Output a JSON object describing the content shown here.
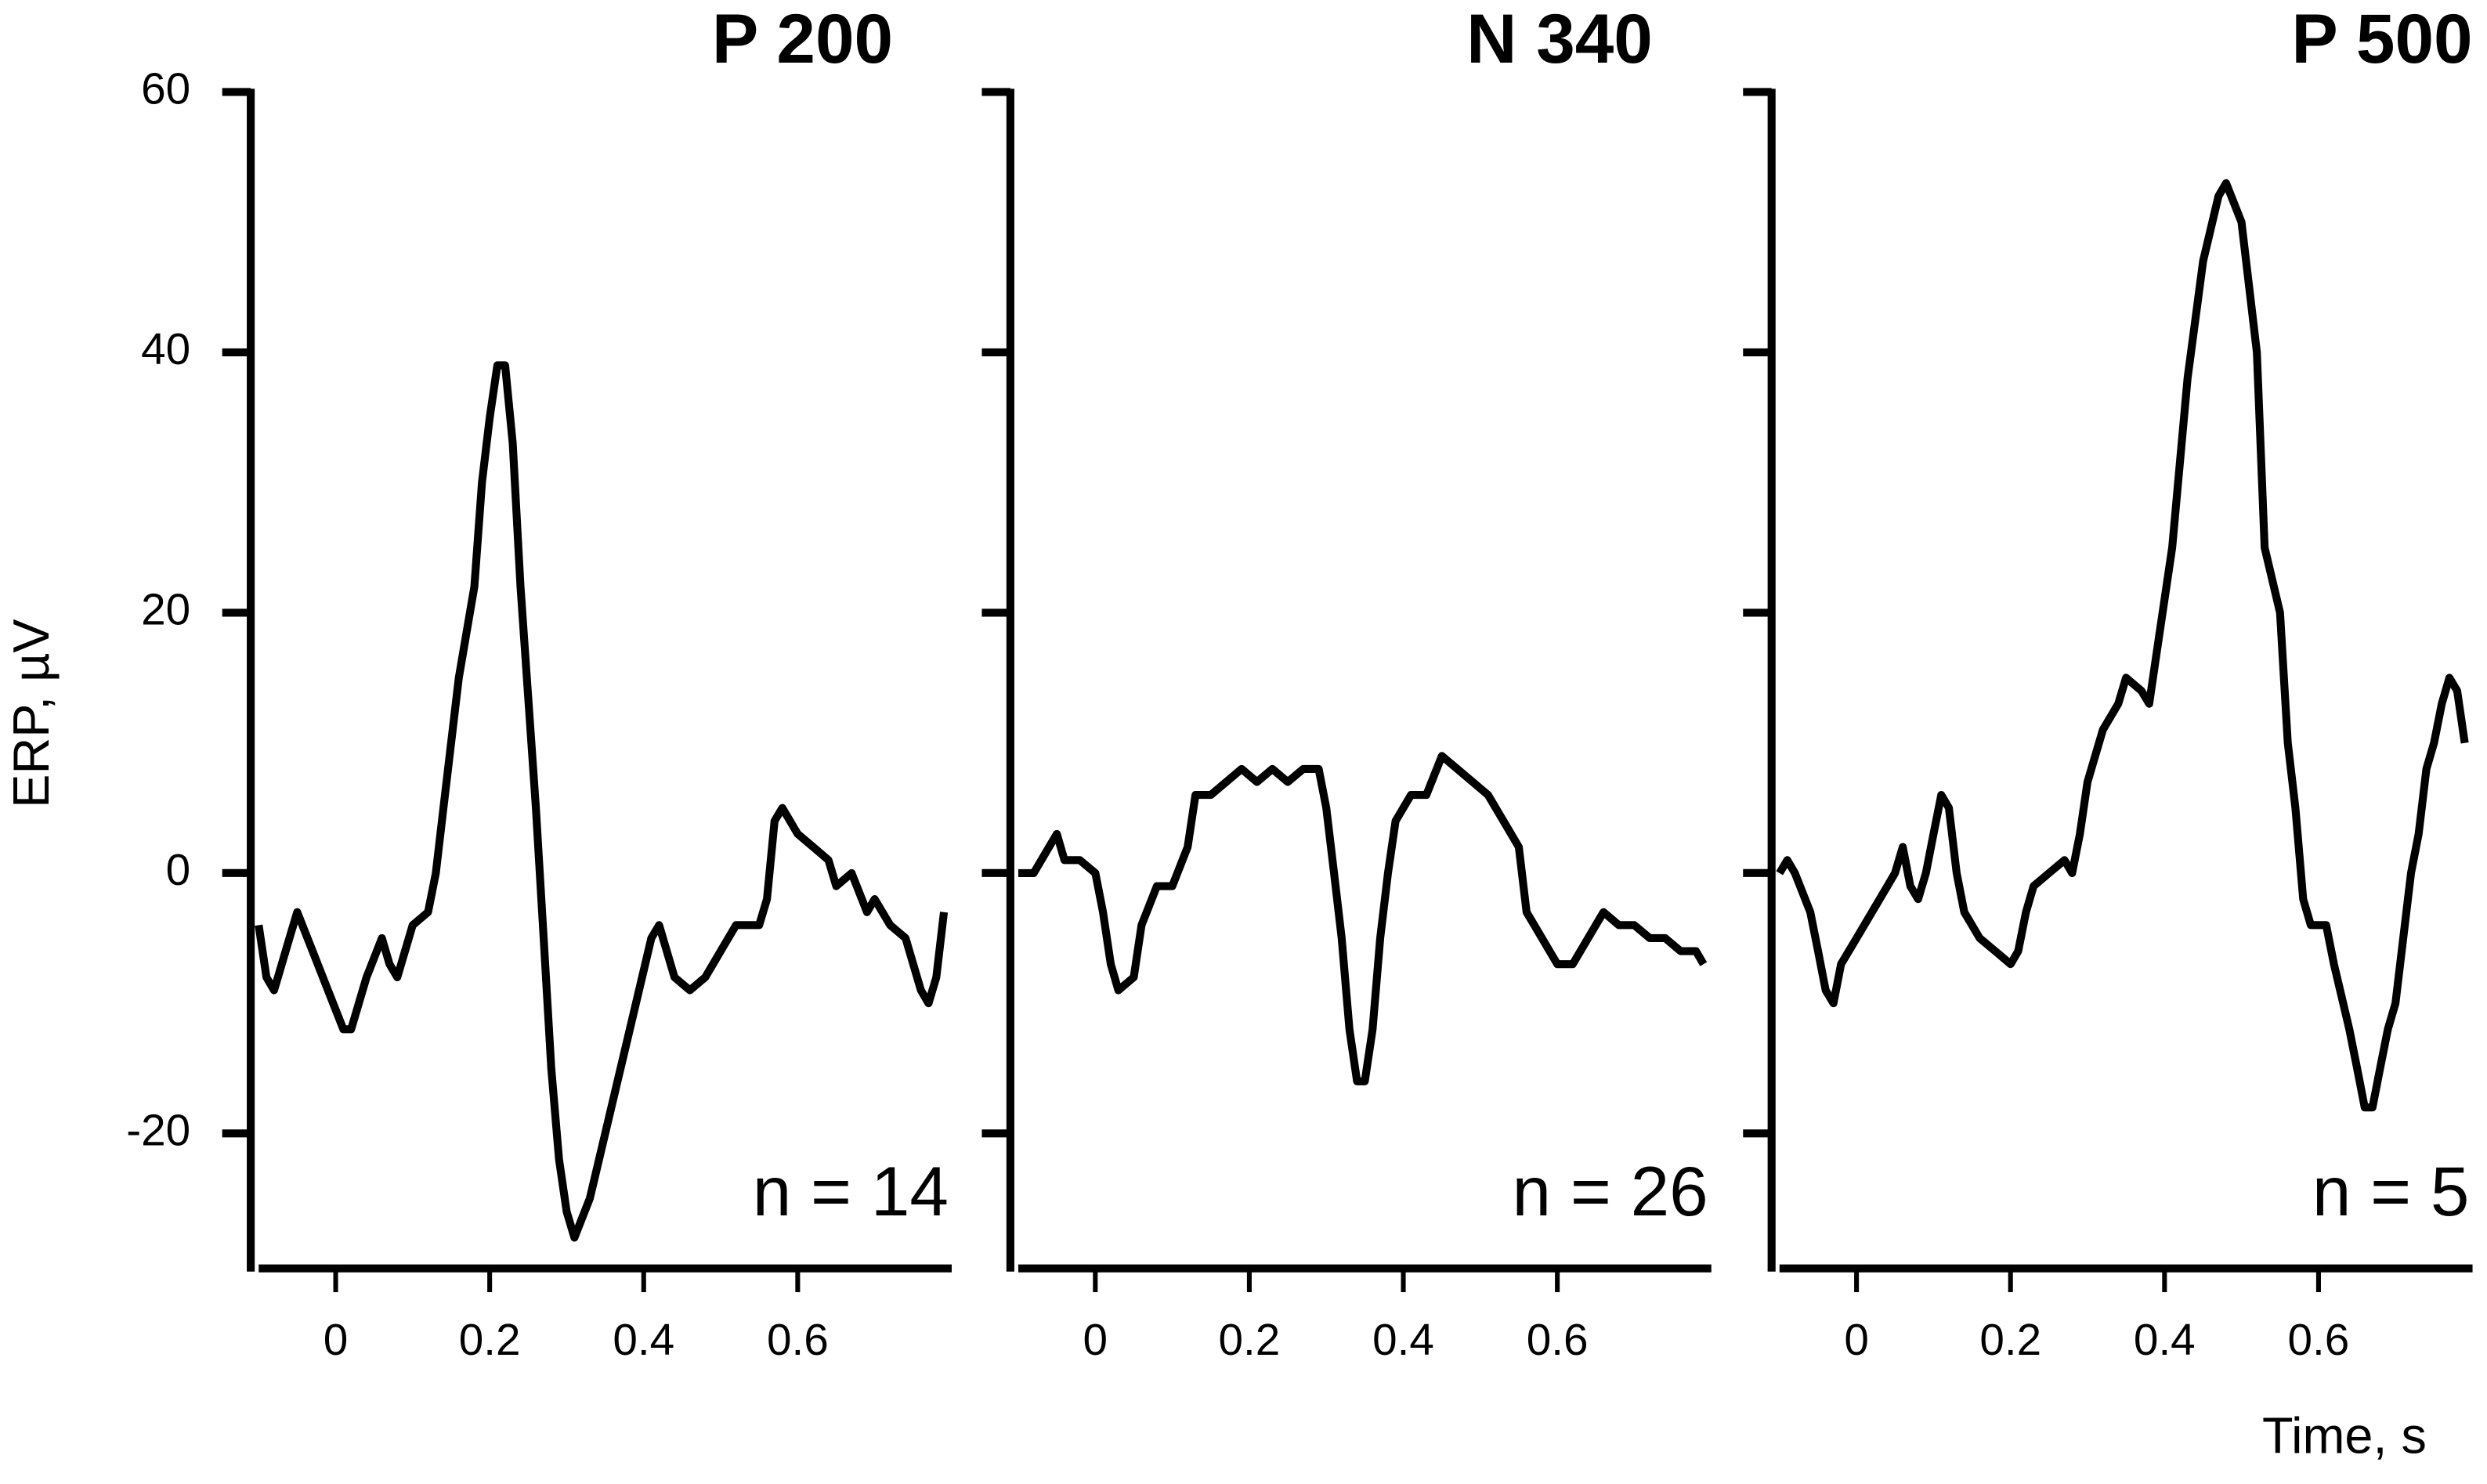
{
  "chart_data": [
    {
      "type": "line",
      "title": "P 200",
      "annotation": "n = 14",
      "y_label": "ERP, µV",
      "xlim": [
        -0.1,
        0.8
      ],
      "ylim": [
        -30,
        60
      ],
      "xticks": [
        0,
        0.2,
        0.4,
        0.6
      ],
      "yticks": [
        -20,
        0,
        20,
        40,
        60
      ],
      "show_ytick_labels": true,
      "color": "#000000",
      "x": [
        -0.1,
        -0.09,
        -0.08,
        -0.06,
        -0.05,
        -0.03,
        -0.01,
        0.01,
        0.02,
        0.04,
        0.06,
        0.07,
        0.08,
        0.1,
        0.12,
        0.13,
        0.14,
        0.16,
        0.18,
        0.19,
        0.2,
        0.21,
        0.22,
        0.23,
        0.24,
        0.26,
        0.27,
        0.28,
        0.29,
        0.3,
        0.31,
        0.33,
        0.35,
        0.37,
        0.39,
        0.41,
        0.42,
        0.44,
        0.46,
        0.48,
        0.5,
        0.52,
        0.55,
        0.56,
        0.57,
        0.58,
        0.6,
        0.62,
        0.64,
        0.65,
        0.67,
        0.69,
        0.7,
        0.72,
        0.74,
        0.76,
        0.77,
        0.78,
        0.79
      ],
      "values": [
        -4,
        -8,
        -9,
        -5,
        -3,
        -6,
        -9,
        -12,
        -12,
        -8,
        -5,
        -7,
        -8,
        -4,
        -3,
        0,
        5,
        15,
        22,
        30,
        35,
        39,
        39,
        33,
        22,
        5,
        -5,
        -15,
        -22,
        -26,
        -28,
        -25,
        -20,
        -15,
        -10,
        -5,
        -4,
        -8,
        -9,
        -8,
        -6,
        -4,
        -4,
        -2,
        4,
        5,
        3,
        2,
        1,
        -1,
        0,
        -3,
        -2,
        -4,
        -5,
        -9,
        -10,
        -8,
        -3
      ]
    },
    {
      "type": "line",
      "title": "N 340",
      "annotation": "n = 26",
      "xlim": [
        -0.1,
        0.8
      ],
      "ylim": [
        -30,
        60
      ],
      "xticks": [
        0,
        0.2,
        0.4,
        0.6
      ],
      "yticks": [
        -20,
        0,
        20,
        40,
        60
      ],
      "show_ytick_labels": false,
      "color": "#000000",
      "x": [
        -0.1,
        -0.08,
        -0.06,
        -0.05,
        -0.04,
        -0.02,
        0,
        0.01,
        0.02,
        0.03,
        0.05,
        0.06,
        0.08,
        0.1,
        0.12,
        0.13,
        0.15,
        0.17,
        0.19,
        0.21,
        0.23,
        0.25,
        0.27,
        0.29,
        0.3,
        0.31,
        0.32,
        0.33,
        0.34,
        0.35,
        0.36,
        0.37,
        0.38,
        0.39,
        0.41,
        0.43,
        0.45,
        0.47,
        0.49,
        0.51,
        0.53,
        0.55,
        0.56,
        0.58,
        0.6,
        0.62,
        0.64,
        0.66,
        0.68,
        0.7,
        0.72,
        0.74,
        0.76,
        0.78,
        0.79
      ],
      "values": [
        0,
        0,
        2,
        3,
        1,
        1,
        0,
        -3,
        -7,
        -9,
        -8,
        -4,
        -1,
        -1,
        2,
        6,
        6,
        7,
        8,
        7,
        8,
        7,
        8,
        8,
        5,
        0,
        -5,
        -12,
        -16,
        -16,
        -12,
        -5,
        0,
        4,
        6,
        6,
        9,
        8,
        7,
        6,
        4,
        2,
        -3,
        -5,
        -7,
        -7,
        -5,
        -3,
        -4,
        -4,
        -5,
        -5,
        -6,
        -6,
        -7
      ]
    },
    {
      "type": "line",
      "title": "P 500",
      "annotation": "n = 5",
      "x_label": "Time, s",
      "xlim": [
        -0.1,
        0.8
      ],
      "ylim": [
        -30,
        60
      ],
      "xticks": [
        0,
        0.2,
        0.4,
        0.6
      ],
      "yticks": [
        -20,
        0,
        20,
        40,
        60
      ],
      "show_ytick_labels": false,
      "color": "#000000",
      "x": [
        -0.1,
        -0.09,
        -0.08,
        -0.06,
        -0.05,
        -0.04,
        -0.03,
        -0.02,
        0,
        0.02,
        0.04,
        0.05,
        0.06,
        0.07,
        0.08,
        0.09,
        0.1,
        0.11,
        0.12,
        0.13,
        0.14,
        0.16,
        0.18,
        0.2,
        0.21,
        0.22,
        0.23,
        0.25,
        0.27,
        0.28,
        0.29,
        0.3,
        0.32,
        0.34,
        0.35,
        0.37,
        0.38,
        0.39,
        0.41,
        0.43,
        0.45,
        0.47,
        0.48,
        0.5,
        0.52,
        0.53,
        0.55,
        0.56,
        0.57,
        0.58,
        0.59,
        0.61,
        0.62,
        0.64,
        0.65,
        0.66,
        0.67,
        0.68,
        0.69,
        0.7,
        0.71,
        0.72,
        0.73,
        0.74,
        0.75,
        0.76,
        0.77,
        0.78,
        0.79
      ],
      "values": [
        0,
        1,
        0,
        -3,
        -6,
        -9,
        -10,
        -7,
        -5,
        -3,
        -1,
        0,
        2,
        -1,
        -2,
        0,
        3,
        6,
        5,
        0,
        -3,
        -5,
        -6,
        -7,
        -6,
        -3,
        -1,
        0,
        1,
        0,
        3,
        7,
        11,
        13,
        15,
        14,
        13,
        17,
        25,
        38,
        47,
        52,
        53,
        50,
        40,
        25,
        20,
        10,
        5,
        -2,
        -4,
        -4,
        -7,
        -12,
        -15,
        -18,
        -18,
        -15,
        -12,
        -10,
        -5,
        0,
        3,
        8,
        10,
        13,
        15,
        14,
        10
      ]
    }
  ]
}
